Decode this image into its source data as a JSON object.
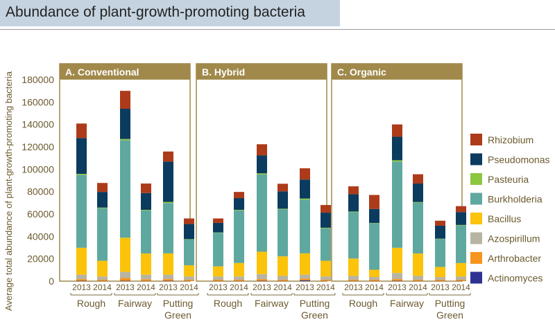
{
  "title": "Abundance of plant-growth-promoting bacteria",
  "chart_data": {
    "type": "bar",
    "stacked": true,
    "title": "Abundance of plant-growth-promoting bacteria",
    "ylabel": "Average total abundance of plant-growth-promoting bacteria",
    "xlabel": "",
    "ylim": [
      0,
      180000
    ],
    "yticks": [
      "0",
      "20000",
      "40000",
      "60000",
      "80000",
      "100000",
      "120000",
      "140000",
      "160000",
      "180000"
    ],
    "groups": [
      "Rough",
      "Fairway",
      "Putting Green"
    ],
    "years": [
      "2013",
      "2014"
    ],
    "legend_position": "right",
    "colors": {
      "Actinomyces": "#2e3192",
      "Arthrobacter": "#f7941d",
      "Azospirillum": "#b8b4a3",
      "Bacillus": "#fcc30b",
      "Burkholderia": "#5fa8a0",
      "Pasteuria": "#8dc63f",
      "Pseudomonas": "#0b3b5e",
      "Rhizobium": "#ad3b1a"
    },
    "legend": [
      "Rhizobium",
      "Pseudomonas",
      "Pasteuria",
      "Burkholderia",
      "Bacillus",
      "Azospirillum",
      "Arthrobacter",
      "Actinomyces"
    ],
    "panel_frame_color": "#a0894a",
    "panels": [
      {
        "name": "A. Conventional",
        "bars": [
          {
            "group": "Rough",
            "year": "2013",
            "values": {
              "Actinomyces": 300,
              "Arthrobacter": 1500,
              "Azospirillum": 4000,
              "Bacillus": 24000,
              "Burkholderia": 65000,
              "Pasteuria": 1000,
              "Pseudomonas": 32000,
              "Rhizobium": 13000
            }
          },
          {
            "group": "Rough",
            "year": "2014",
            "values": {
              "Actinomyces": 200,
              "Arthrobacter": 1000,
              "Azospirillum": 3000,
              "Bacillus": 14000,
              "Burkholderia": 47000,
              "Pasteuria": 500,
              "Pseudomonas": 14000,
              "Rhizobium": 8000
            }
          },
          {
            "group": "Fairway",
            "year": "2013",
            "values": {
              "Actinomyces": 300,
              "Arthrobacter": 2500,
              "Azospirillum": 5500,
              "Bacillus": 30500,
              "Burkholderia": 87000,
              "Pasteuria": 1200,
              "Pseudomonas": 27000,
              "Rhizobium": 16000
            }
          },
          {
            "group": "Fairway",
            "year": "2014",
            "values": {
              "Actinomyces": 200,
              "Arthrobacter": 1500,
              "Azospirillum": 4000,
              "Bacillus": 19000,
              "Burkholderia": 38500,
              "Pasteuria": 500,
              "Pseudomonas": 15000,
              "Rhizobium": 8500
            }
          },
          {
            "group": "Putting Green",
            "year": "2013",
            "values": {
              "Actinomyces": 300,
              "Arthrobacter": 1500,
              "Azospirillum": 4000,
              "Bacillus": 19000,
              "Burkholderia": 45000,
              "Pasteuria": 1000,
              "Pseudomonas": 36000,
              "Rhizobium": 9000
            }
          },
          {
            "group": "Putting Green",
            "year": "2014",
            "values": {
              "Actinomyces": 200,
              "Arthrobacter": 1000,
              "Azospirillum": 3000,
              "Bacillus": 10000,
              "Burkholderia": 23000,
              "Pasteuria": 300,
              "Pseudomonas": 13500,
              "Rhizobium": 5000
            }
          }
        ]
      },
      {
        "name": "B. Hybrid",
        "bars": [
          {
            "group": "Rough",
            "year": "2013",
            "values": {
              "Actinomyces": 200,
              "Arthrobacter": 1000,
              "Azospirillum": 3000,
              "Bacillus": 9000,
              "Burkholderia": 30000,
              "Pasteuria": 300,
              "Pseudomonas": 8500,
              "Rhizobium": 4000
            }
          },
          {
            "group": "Rough",
            "year": "2014",
            "values": {
              "Actinomyces": 200,
              "Arthrobacter": 1000,
              "Azospirillum": 3000,
              "Bacillus": 12000,
              "Burkholderia": 47000,
              "Pasteuria": 500,
              "Pseudomonas": 10500,
              "Rhizobium": 5500
            }
          },
          {
            "group": "Fairway",
            "year": "2013",
            "values": {
              "Actinomyces": 300,
              "Arthrobacter": 1500,
              "Azospirillum": 4500,
              "Bacillus": 20000,
              "Burkholderia": 69000,
              "Pasteuria": 1000,
              "Pseudomonas": 16000,
              "Rhizobium": 10000
            }
          },
          {
            "group": "Fairway",
            "year": "2014",
            "values": {
              "Actinomyces": 200,
              "Arthrobacter": 1000,
              "Azospirillum": 3500,
              "Bacillus": 17500,
              "Burkholderia": 42000,
              "Pasteuria": 500,
              "Pseudomonas": 15500,
              "Rhizobium": 6800
            }
          },
          {
            "group": "Putting Green",
            "year": "2013",
            "values": {
              "Actinomyces": 800,
              "Arthrobacter": 1500,
              "Azospirillum": 3500,
              "Bacillus": 19000,
              "Burkholderia": 48000,
              "Pasteuria": 1000,
              "Pseudomonas": 17000,
              "Rhizobium": 10000
            }
          },
          {
            "group": "Putting Green",
            "year": "2014",
            "values": {
              "Actinomyces": 200,
              "Arthrobacter": 1000,
              "Azospirillum": 3000,
              "Bacillus": 14000,
              "Burkholderia": 29000,
              "Pasteuria": 500,
              "Pseudomonas": 13500,
              "Rhizobium": 6800
            }
          }
        ]
      },
      {
        "name": "C. Organic",
        "bars": [
          {
            "group": "Rough",
            "year": "2013",
            "values": {
              "Actinomyces": 200,
              "Arthrobacter": 1000,
              "Azospirillum": 3500,
              "Bacillus": 15500,
              "Burkholderia": 41500,
              "Pasteuria": 500,
              "Pseudomonas": 15500,
              "Rhizobium": 7000
            }
          },
          {
            "group": "Rough",
            "year": "2014",
            "values": {
              "Actinomyces": 200,
              "Arthrobacter": 1000,
              "Azospirillum": 2500,
              "Bacillus": 6500,
              "Burkholderia": 41500,
              "Pasteuria": 300,
              "Pseudomonas": 12500,
              "Rhizobium": 12500
            }
          },
          {
            "group": "Fairway",
            "year": "2013",
            "values": {
              "Actinomyces": 300,
              "Arthrobacter": 1500,
              "Azospirillum": 5500,
              "Bacillus": 22500,
              "Burkholderia": 77000,
              "Pasteuria": 1200,
              "Pseudomonas": 21000,
              "Rhizobium": 11000
            }
          },
          {
            "group": "Fairway",
            "year": "2014",
            "values": {
              "Actinomyces": 200,
              "Arthrobacter": 1000,
              "Azospirillum": 3500,
              "Bacillus": 20000,
              "Burkholderia": 45500,
              "Pasteuria": 500,
              "Pseudomonas": 16500,
              "Rhizobium": 8300
            }
          },
          {
            "group": "Putting Green",
            "year": "2013",
            "values": {
              "Actinomyces": 200,
              "Arthrobacter": 1000,
              "Azospirillum": 2500,
              "Bacillus": 9000,
              "Burkholderia": 25000,
              "Pasteuria": 300,
              "Pseudomonas": 11500,
              "Rhizobium": 4500
            }
          },
          {
            "group": "Putting Green",
            "year": "2014",
            "values": {
              "Actinomyces": 200,
              "Arthrobacter": 1000,
              "Azospirillum": 3000,
              "Bacillus": 12000,
              "Burkholderia": 33500,
              "Pasteuria": 500,
              "Pseudomonas": 11500,
              "Rhizobium": 5300
            }
          }
        ]
      }
    ]
  }
}
